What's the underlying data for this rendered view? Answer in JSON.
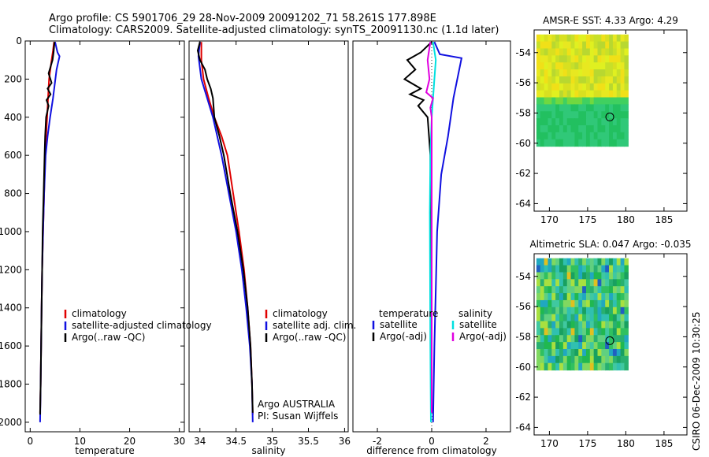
{
  "figure": {
    "title_line1": "Argo profile: CS 5901706_29 28-Nov-2009 20091202_71 58.261S 177.898E",
    "title_line2": "Climatology: CARS2009. Satellite-adjusted climatology: synTS_20091130.nc (1.1d later)",
    "side_stamp": "CSIRO 06-Dec-2009 10:30:25"
  },
  "colors": {
    "climatology": "#e00000",
    "satellite": "#1010e0",
    "argo": "#000000",
    "sat_salinity": "#00e0e0",
    "argo_adj_salinity": "#e000e0"
  },
  "chart_data": [
    {
      "id": "temperature",
      "type": "line",
      "xlabel": "temperature",
      "ylabel": "",
      "xlim": [
        -1,
        31
      ],
      "ylim": [
        2050,
        0
      ],
      "xticks": [
        0,
        10,
        20,
        30
      ],
      "yticks": [
        0,
        200,
        400,
        600,
        800,
        1000,
        1200,
        1400,
        1600,
        1800,
        2000
      ],
      "legend": {
        "placement": "lower-right",
        "entries": [
          "climatology",
          "satellite-adjusted climatology",
          "Argo(..raw -QC)"
        ]
      },
      "series": [
        {
          "name": "climatology",
          "color": "climatology",
          "points": [
            [
              4.8,
              5
            ],
            [
              4.6,
              50
            ],
            [
              4.3,
              100
            ],
            [
              3.8,
              200
            ],
            [
              3.6,
              300
            ],
            [
              3.4,
              400
            ],
            [
              3.2,
              500
            ],
            [
              3.0,
              600
            ],
            [
              2.8,
              800
            ],
            [
              2.6,
              1000
            ],
            [
              2.4,
              1200
            ],
            [
              2.3,
              1400
            ],
            [
              2.2,
              1600
            ],
            [
              2.1,
              1800
            ],
            [
              2.0,
              1950
            ]
          ]
        },
        {
          "name": "satellite-adjusted climatology",
          "color": "satellite",
          "points": [
            [
              5.0,
              5
            ],
            [
              5.5,
              60
            ],
            [
              5.9,
              80
            ],
            [
              5.3,
              150
            ],
            [
              4.6,
              300
            ],
            [
              4.0,
              400
            ],
            [
              3.5,
              500
            ],
            [
              3.1,
              600
            ],
            [
              2.8,
              800
            ],
            [
              2.6,
              1000
            ],
            [
              2.4,
              1200
            ],
            [
              2.3,
              1400
            ],
            [
              2.2,
              1600
            ],
            [
              2.1,
              1800
            ],
            [
              2.0,
              2000
            ]
          ]
        },
        {
          "name": "Argo(..raw -QC)",
          "color": "argo",
          "points": [
            [
              4.9,
              5
            ],
            [
              4.7,
              60
            ],
            [
              4.5,
              100
            ],
            [
              3.7,
              170
            ],
            [
              4.3,
              220
            ],
            [
              3.5,
              250
            ],
            [
              4.1,
              280
            ],
            [
              3.3,
              310
            ],
            [
              3.7,
              340
            ],
            [
              3.2,
              400
            ],
            [
              3.0,
              500
            ],
            [
              2.9,
              600
            ],
            [
              2.7,
              800
            ],
            [
              2.5,
              1000
            ],
            [
              2.4,
              1200
            ],
            [
              2.3,
              1400
            ],
            [
              2.2,
              1600
            ],
            [
              2.1,
              1800
            ],
            [
              2.0,
              1960
            ]
          ]
        }
      ]
    },
    {
      "id": "salinity",
      "type": "line",
      "xlabel": "salinity",
      "ylabel": "",
      "xlim": [
        33.85,
        36.05
      ],
      "ylim": [
        2050,
        0
      ],
      "xticks": [
        34,
        34.5,
        35,
        35.5,
        36
      ],
      "tick_labels": [
        "34",
        "34.5",
        "35",
        "35.5",
        "36"
      ],
      "legend": {
        "placement": "lower-right",
        "entries": [
          "climatology",
          "satellite adj. clim.",
          "Argo(..raw -QC)"
        ]
      },
      "annotation": [
        "Argo AUSTRALIA",
        "PI: Susan Wijffels"
      ],
      "series": [
        {
          "name": "climatology",
          "color": "climatology",
          "points": [
            [
              34.02,
              5
            ],
            [
              34.02,
              100
            ],
            [
              34.05,
              200
            ],
            [
              34.12,
              300
            ],
            [
              34.2,
              400
            ],
            [
              34.3,
              500
            ],
            [
              34.38,
              600
            ],
            [
              34.46,
              800
            ],
            [
              34.54,
              1000
            ],
            [
              34.61,
              1200
            ],
            [
              34.66,
              1400
            ],
            [
              34.7,
              1600
            ],
            [
              34.72,
              1800
            ],
            [
              34.73,
              1960
            ]
          ]
        },
        {
          "name": "satellite adj. clim.",
          "color": "satellite",
          "points": [
            [
              34.0,
              5
            ],
            [
              33.98,
              80
            ],
            [
              34.02,
              200
            ],
            [
              34.1,
              300
            ],
            [
              34.18,
              400
            ],
            [
              34.24,
              500
            ],
            [
              34.3,
              600
            ],
            [
              34.4,
              800
            ],
            [
              34.5,
              1000
            ],
            [
              34.58,
              1200
            ],
            [
              34.64,
              1400
            ],
            [
              34.69,
              1600
            ],
            [
              34.72,
              1800
            ],
            [
              34.73,
              2000
            ]
          ]
        },
        {
          "name": "Argo(..raw -QC)",
          "color": "argo",
          "points": [
            [
              34.0,
              5
            ],
            [
              33.97,
              50
            ],
            [
              34.0,
              100
            ],
            [
              34.07,
              150
            ],
            [
              34.1,
              200
            ],
            [
              34.15,
              250
            ],
            [
              34.18,
              300
            ],
            [
              34.2,
              400
            ],
            [
              34.27,
              500
            ],
            [
              34.33,
              600
            ],
            [
              34.42,
              800
            ],
            [
              34.52,
              1000
            ],
            [
              34.6,
              1200
            ],
            [
              34.66,
              1400
            ],
            [
              34.7,
              1600
            ],
            [
              34.72,
              1800
            ],
            [
              34.73,
              1950
            ]
          ]
        }
      ]
    },
    {
      "id": "difference",
      "type": "line",
      "xlabel": "difference from climatology",
      "ylabel": "",
      "xlim": [
        -2.9,
        2.9
      ],
      "ylim": [
        2050,
        0
      ],
      "xticks": [
        -2,
        0,
        2
      ],
      "tick_labels": [
        "-2",
        "0",
        "2"
      ],
      "legend": {
        "placement": "lower-right",
        "groups": [
          {
            "title": "temperature",
            "entries": [
              "satellite",
              "Argo(-adj)"
            ]
          },
          {
            "title": "salinity",
            "entries": [
              "satellite",
              "Argo(-adj)"
            ]
          }
        ]
      },
      "series": [
        {
          "name": "temperature satellite",
          "color": "satellite",
          "points": [
            [
              0.1,
              5
            ],
            [
              0.3,
              70
            ],
            [
              1.1,
              90
            ],
            [
              0.8,
              300
            ],
            [
              0.6,
              500
            ],
            [
              0.35,
              700
            ],
            [
              0.2,
              1000
            ],
            [
              0.15,
              1300
            ],
            [
              0.1,
              1600
            ],
            [
              0.05,
              2000
            ]
          ]
        },
        {
          "name": "temperature Argo(-adj)",
          "color": "argo",
          "points": [
            [
              0.0,
              5
            ],
            [
              -0.4,
              60
            ],
            [
              -0.9,
              100
            ],
            [
              -0.6,
              150
            ],
            [
              -1.0,
              200
            ],
            [
              -0.4,
              250
            ],
            [
              -0.8,
              280
            ],
            [
              -0.3,
              310
            ],
            [
              -0.5,
              340
            ],
            [
              -0.15,
              400
            ],
            [
              -0.1,
              500
            ],
            [
              -0.05,
              600
            ],
            [
              -0.02,
              1000
            ],
            [
              0.0,
              1500
            ],
            [
              0.0,
              1950
            ]
          ]
        },
        {
          "name": "salinity satellite",
          "color": "sat_salinity",
          "points": [
            [
              0.05,
              5
            ],
            [
              0.15,
              100
            ],
            [
              0.1,
              200
            ],
            [
              0.0,
              400
            ],
            [
              -0.05,
              600
            ],
            [
              -0.07,
              900
            ],
            [
              -0.06,
              1200
            ],
            [
              -0.05,
              1600
            ],
            [
              -0.03,
              2000
            ]
          ]
        },
        {
          "name": "salinity Argo(-adj)",
          "color": "argo_adj_salinity",
          "points": [
            [
              -0.05,
              5
            ],
            [
              -0.15,
              100
            ],
            [
              -0.08,
              200
            ],
            [
              -0.2,
              270
            ],
            [
              0.05,
              300
            ],
            [
              -0.05,
              350
            ],
            [
              0.0,
              400
            ],
            [
              0.0,
              600
            ],
            [
              0.0,
              1000
            ],
            [
              0.0,
              1500
            ],
            [
              0.0,
              1950
            ]
          ]
        }
      ]
    },
    {
      "id": "sst_map",
      "type": "heatmap",
      "title": "AMSR-E SST: 4.33 Argo: 4.29",
      "xlim": [
        168,
        188
      ],
      "ylim": [
        -64.5,
        -52.5
      ],
      "xticks": [
        170,
        175,
        180,
        185
      ],
      "yticks": [
        -54,
        -56,
        -58,
        -60,
        -62,
        -64
      ],
      "grid_extent": {
        "lon": [
          168.3,
          180.3
        ],
        "lat": [
          -60.2,
          -52.8
        ]
      },
      "marker": {
        "lon": 177.9,
        "lat": -58.26
      }
    },
    {
      "id": "sla_map",
      "type": "heatmap",
      "title": "Altimetric SLA: 0.047 Argo: -0.035",
      "xlim": [
        168,
        188
      ],
      "ylim": [
        -64.5,
        -52.5
      ],
      "xticks": [
        170,
        175,
        180,
        185
      ],
      "yticks": [
        -54,
        -56,
        -58,
        -60,
        -62,
        -64
      ],
      "grid_extent": {
        "lon": [
          168.3,
          180.3
        ],
        "lat": [
          -60.2,
          -52.8
        ]
      },
      "marker": {
        "lon": 177.9,
        "lat": -58.26
      }
    }
  ]
}
